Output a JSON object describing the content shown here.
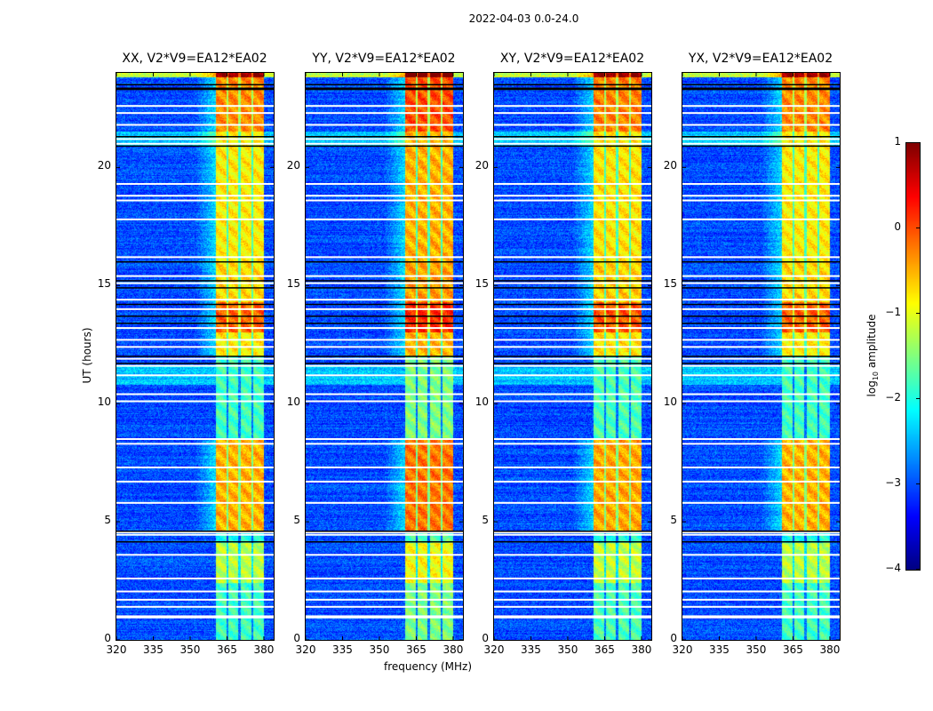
{
  "chart_data": {
    "type": "heatmap",
    "suptitle": "2022-04-03 0.0-24.0",
    "xlabel": "frequency (MHz)",
    "ylabel": "UT (hours)",
    "xlim": [
      320,
      384
    ],
    "ylim": [
      0,
      24
    ],
    "xticks": [
      320,
      335,
      350,
      365,
      380
    ],
    "yticks": [
      0,
      5,
      10,
      15,
      20
    ],
    "colorbar": {
      "label": "log10 amplitude",
      "label_main": "log",
      "label_sub": "10",
      "label_rest": " amplitude",
      "range": [
        -4,
        1
      ],
      "ticks": [
        1,
        0,
        -1,
        -2,
        -3,
        -4
      ],
      "tick_labels": [
        "1",
        "0",
        "−1",
        "−2",
        "−3",
        "−4"
      ],
      "colormap": "jet"
    },
    "panels": [
      {
        "title": "XX, V2*V9=EA12*EA02",
        "band_offset": 0.0
      },
      {
        "title": "YY, V2*V9=EA12*EA02",
        "band_offset": 0.3
      },
      {
        "title": "XY, V2*V9=EA12*EA02",
        "band_offset": 0.05
      },
      {
        "title": "YX, V2*V9=EA12*EA02",
        "band_offset": 0.0
      }
    ],
    "background_level": -3.0,
    "subbands_mhz": [
      [
        360.5,
        364.9
      ],
      [
        365.6,
        369.6
      ],
      [
        370.6,
        375.0
      ],
      [
        375.7,
        380.0
      ]
    ],
    "band_segments_ut": [
      {
        "start": 0.0,
        "end": 2.4,
        "level": -1.8
      },
      {
        "start": 2.4,
        "end": 4.1,
        "level": -1.2
      },
      {
        "start": 4.1,
        "end": 4.6,
        "level": -2.0
      },
      {
        "start": 4.6,
        "end": 8.5,
        "level": -0.5
      },
      {
        "start": 8.5,
        "end": 12.0,
        "level": -1.8
      },
      {
        "start": 12.0,
        "end": 13.0,
        "level": -0.8
      },
      {
        "start": 13.0,
        "end": 14.3,
        "level": -0.1
      },
      {
        "start": 14.3,
        "end": 16.0,
        "level": -0.7
      },
      {
        "start": 16.0,
        "end": 21.5,
        "level": -0.8
      },
      {
        "start": 21.5,
        "end": 23.8,
        "level": -0.3
      },
      {
        "start": 23.8,
        "end": 24.0,
        "level": 0.9
      }
    ],
    "flagged_white_ut": [
      0.95,
      1.0,
      1.4,
      1.7,
      2.05,
      2.6,
      3.6,
      4.45,
      4.55,
      5.8,
      6.7,
      7.3,
      8.3,
      8.5,
      10.1,
      10.4,
      11.2,
      11.6,
      11.9,
      12.4,
      12.7,
      13.2,
      14.0,
      14.4,
      15.1,
      15.4,
      16.2,
      17.8,
      18.6,
      18.8,
      19.3,
      21.0,
      21.2,
      21.8,
      22.3,
      22.6
    ],
    "flagged_black_ut": [
      4.15,
      4.6,
      11.7,
      12.0,
      13.4,
      13.7,
      14.2,
      14.9,
      15.2,
      16.0,
      20.9,
      21.3,
      23.3,
      23.35,
      23.5
    ]
  }
}
